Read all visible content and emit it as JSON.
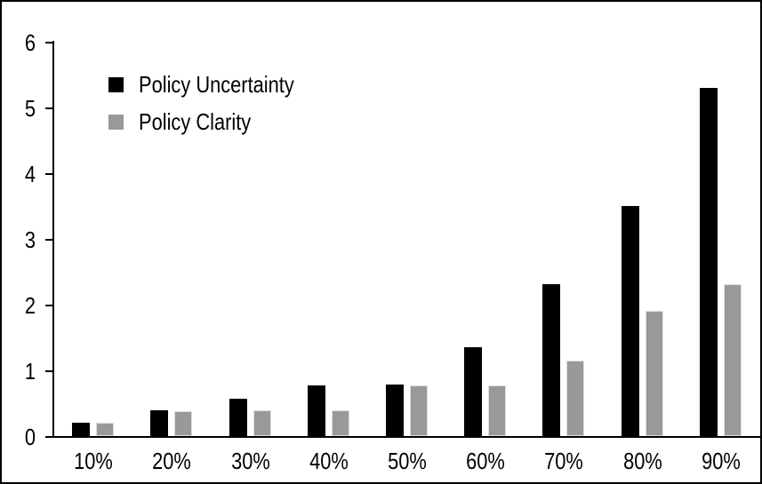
{
  "chart_data": {
    "type": "bar",
    "title": "",
    "categories": [
      "10%",
      "20%",
      "30%",
      "40%",
      "50%",
      "60%",
      "70%",
      "80%",
      "90%"
    ],
    "series": [
      {
        "name": "Policy Uncertainty",
        "color": "#000000",
        "values": [
          0.2,
          0.39,
          0.57,
          0.77,
          0.78,
          1.35,
          2.31,
          3.5,
          5.3
        ]
      },
      {
        "name": "Policy Clarity",
        "color": "#999999",
        "values": [
          0.2,
          0.38,
          0.39,
          0.39,
          0.77,
          0.77,
          1.15,
          1.9,
          2.31
        ]
      }
    ],
    "xlabel": "",
    "ylabel": "",
    "ylim": [
      0,
      6
    ],
    "yticks": [
      0,
      1,
      2,
      3,
      4,
      5,
      6
    ],
    "grid": false,
    "legend_position": "top-left-inside"
  },
  "colors": {
    "background": "#ffffff",
    "frame_border": "#000000",
    "axis": "#000000",
    "clarity_bar_outline": "#e0e0e0"
  }
}
